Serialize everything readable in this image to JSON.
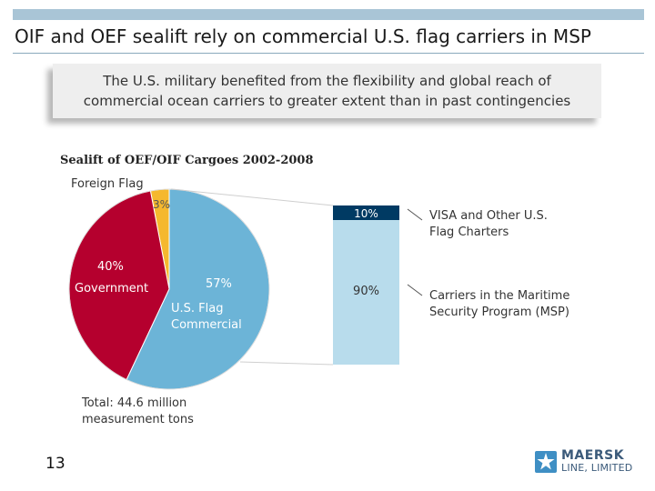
{
  "slide": {
    "title": "OIF and OEF sealift rely on commercial U.S. flag carriers in MSP",
    "callout_line1": "The U.S. military benefited from the flexibility and global reach of",
    "callout_line2": "commercial ocean carriers to greater extent than in past contingencies",
    "page_number": "13"
  },
  "logo": {
    "line1": "MAERSK",
    "line2": "LINE, LIMITED",
    "icon": "star-icon"
  },
  "colors": {
    "foreign": "#f5b82e",
    "government": "#b5002e",
    "commercial": "#6cb4d7",
    "bar_light": "#b8dcec",
    "bar_dark": "#003a63",
    "accent_bar": "#a9c5d6"
  },
  "chart_data": {
    "type": "pie",
    "title": "Sealift of OEF/OIF Cargoes 2002-2008",
    "slices": [
      {
        "name": "Foreign Flag",
        "value": 3,
        "label": "3%"
      },
      {
        "name": "Government",
        "value": 40,
        "label": "40%"
      },
      {
        "name": "U.S. Flag Commercial",
        "value": 57,
        "label": "57%"
      }
    ],
    "total_note": "Total: 44.6 million measurement tons",
    "breakdown": {
      "of": "U.S. Flag Commercial",
      "type": "stacked-bar",
      "segments": [
        {
          "name": "VISA and Other U.S. Flag Charters",
          "value": 10,
          "label": "10%"
        },
        {
          "name": "Carriers in the Maritime Security Program (MSP)",
          "value": 90,
          "label": "90%"
        }
      ]
    }
  }
}
